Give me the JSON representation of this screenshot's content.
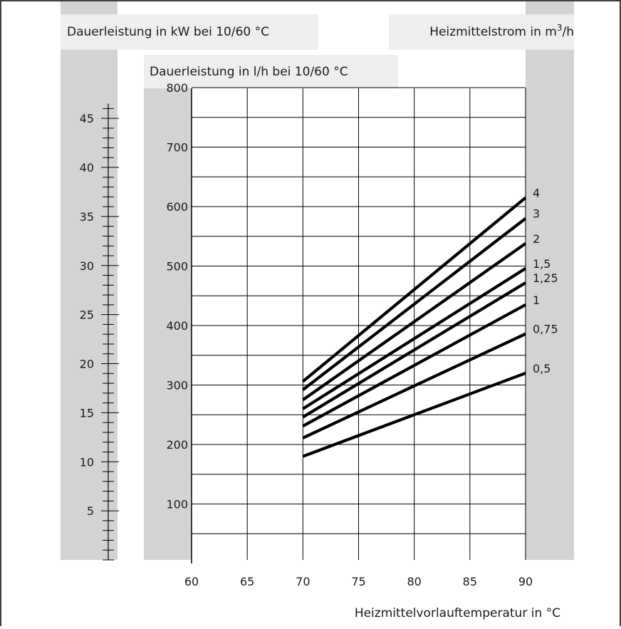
{
  "chart_data": {
    "type": "line",
    "header_left": "Dauerleistung in kW bei 10/60 °C",
    "header_right_prefix": "Heizmittelstrom in m",
    "header_right_sup": "3",
    "header_right_suffix": "/h",
    "header_mid": "Dauerleistung in l/h bei 10/60 °C",
    "xlabel": "Heizmittelvorlauftemperatur in °C",
    "x_ticks": [
      "60",
      "65",
      "70",
      "75",
      "80",
      "85",
      "90"
    ],
    "xlim": [
      60,
      90
    ],
    "y_lh_ticks": [
      "100",
      "200",
      "300",
      "400",
      "500",
      "600",
      "700",
      "800"
    ],
    "ylim_lh": [
      0,
      800
    ],
    "y_kw_ticks": [
      "5",
      "10",
      "15",
      "20",
      "25",
      "30",
      "35",
      "40",
      "45"
    ],
    "ylim_kw": [
      0,
      46.5
    ],
    "grid": true,
    "series": [
      {
        "name": "4",
        "x": [
          70,
          90
        ],
        "y": [
          306,
          615
        ]
      },
      {
        "name": "3",
        "x": [
          70,
          90
        ],
        "y": [
          292,
          580
        ]
      },
      {
        "name": "2",
        "x": [
          70,
          90
        ],
        "y": [
          275,
          538
        ]
      },
      {
        "name": "1,5",
        "x": [
          70,
          90
        ],
        "y": [
          260,
          496
        ]
      },
      {
        "name": "1,25",
        "x": [
          70,
          90
        ],
        "y": [
          246,
          472
        ]
      },
      {
        "name": "1",
        "x": [
          70,
          90
        ],
        "y": [
          231,
          435
        ]
      },
      {
        "name": "0,75",
        "x": [
          70,
          90
        ],
        "y": [
          211,
          386
        ]
      },
      {
        "name": "0,5",
        "x": [
          70,
          90
        ],
        "y": [
          180,
          320
        ]
      }
    ],
    "colors": {
      "band": "#d3d3d3",
      "header_bg": "#eeeeee",
      "line": "#000000"
    }
  }
}
